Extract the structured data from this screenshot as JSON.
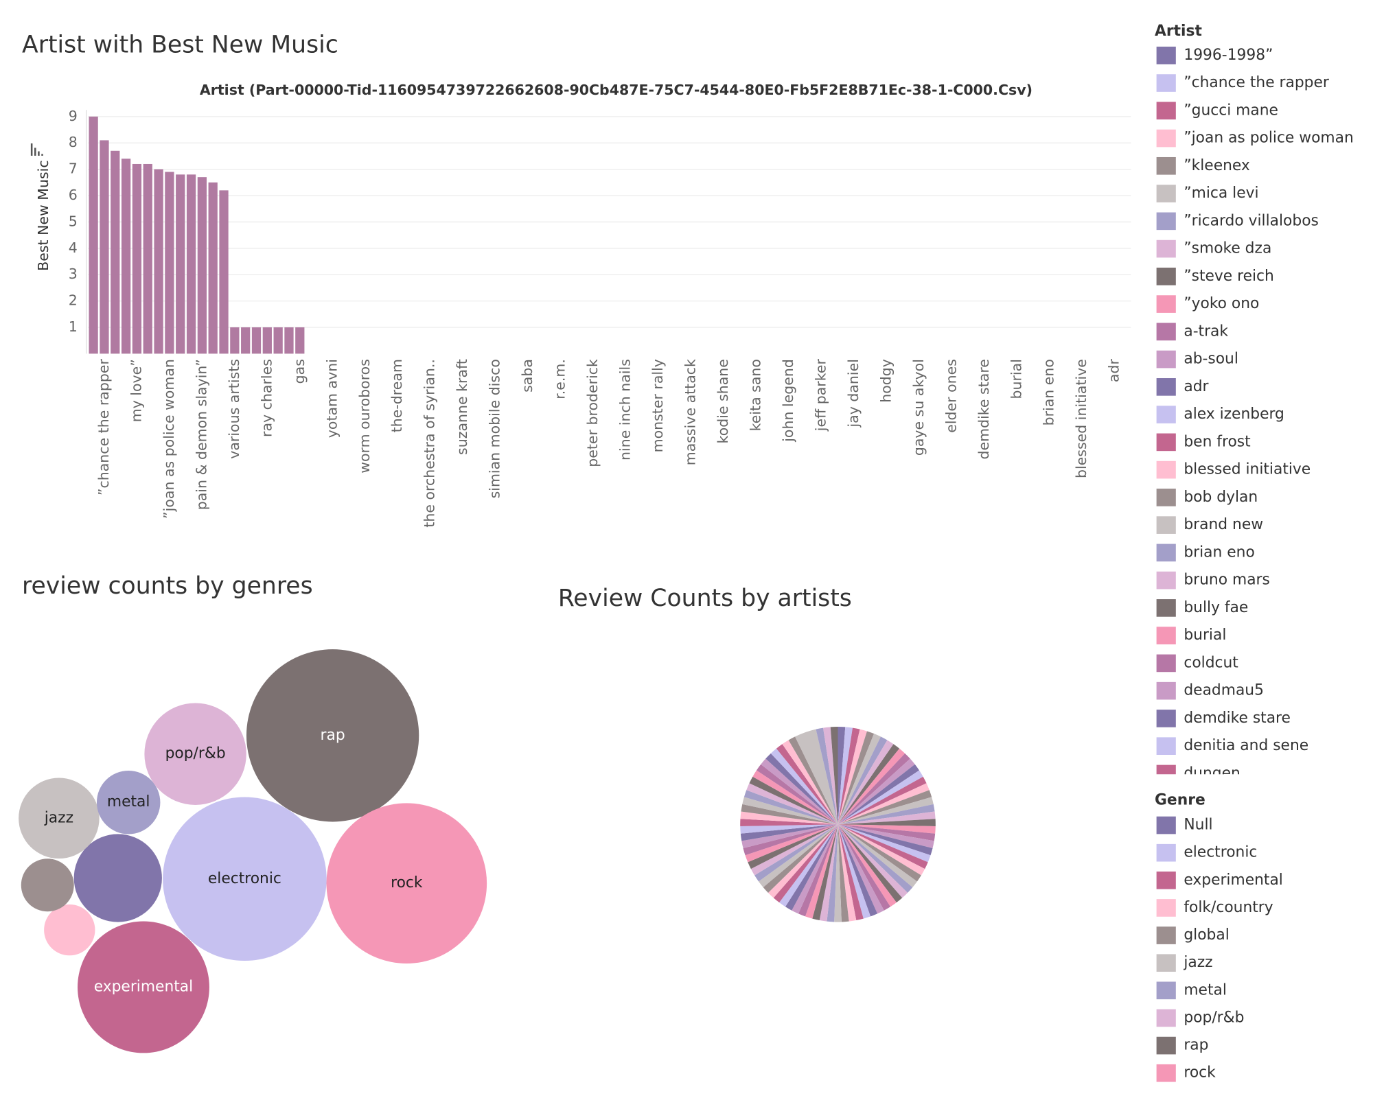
{
  "chart_data": [
    {
      "type": "bar",
      "title": "Artist with Best New Music",
      "x_label": "Artist (Part-00000-Tid-1160954739722662608-90Cb487E-75C7-4544-80E0-Fb5F2E8B71Ec-38-1-C000.Csv)",
      "y_label": "Best New Music",
      "categories": [
        null,
        "”chance the rapper",
        null,
        null,
        "my love”",
        null,
        null,
        "”joan as police woman",
        null,
        null,
        "pain & demon slayin”",
        null,
        null,
        "various artists",
        null,
        null,
        "ray charles",
        null,
        null,
        "gas",
        null,
        null,
        "yotam avni",
        null,
        null,
        "worm ouroboros",
        null,
        null,
        "the-dream",
        null,
        null,
        "the orchestra of syrian..",
        null,
        null,
        "suzanne kraft",
        null,
        null,
        "simian mobile disco",
        null,
        null,
        "saba",
        null,
        null,
        "r.e.m.",
        null,
        null,
        "peter broderick",
        null,
        null,
        "nine inch nails",
        null,
        null,
        "monster rally",
        null,
        null,
        "massive attack",
        null,
        null,
        "kodie shane",
        null,
        null,
        "keita sano",
        null,
        null,
        "john legend",
        null,
        null,
        "jeff parker",
        null,
        null,
        "jay daniel",
        null,
        null,
        "hodgy",
        null,
        null,
        "gaye su akyol",
        null,
        null,
        "elder ones",
        null,
        null,
        "demdike stare",
        null,
        null,
        "burial",
        null,
        null,
        "brian eno",
        null,
        null,
        "blessed initiative",
        null,
        null,
        "adr",
        null
      ],
      "values": [
        9,
        8.1,
        7.7,
        7.4,
        7.2,
        7.2,
        7.0,
        6.9,
        6.8,
        6.8,
        6.7,
        6.5,
        6.2,
        1,
        1,
        1,
        1,
        1,
        1,
        1,
        0,
        0,
        0,
        0,
        0,
        0,
        0,
        0,
        0,
        0,
        0,
        0,
        0,
        0,
        0,
        0,
        0,
        0,
        0,
        0,
        0,
        0,
        0,
        0,
        0,
        0,
        0,
        0,
        0,
        0,
        0,
        0,
        0,
        0,
        0,
        0,
        0,
        0,
        0,
        0,
        0,
        0,
        0,
        0,
        0,
        0,
        0,
        0,
        0,
        0,
        0,
        0,
        0,
        0,
        0,
        0,
        0,
        0,
        0,
        0,
        0,
        0,
        0,
        0,
        0,
        0,
        0,
        0,
        0,
        0,
        0,
        0,
        0,
        0,
        0,
        0
      ],
      "color": "#b07aa1",
      "ylim": [
        0,
        9.25
      ],
      "yticks": [
        1,
        2,
        3,
        4,
        5,
        6,
        7,
        8,
        9
      ],
      "grid": true
    },
    {
      "type": "bubble",
      "title": "review counts by genres",
      "legend_title": "Genre",
      "categories": [
        "Null",
        "electronic",
        "experimental",
        "folk/country",
        "global",
        "jazz",
        "metal",
        "pop/r&b",
        "rap",
        "rock"
      ],
      "values": [
        250,
        865,
        560,
        84,
        90,
        210,
        130,
        335,
        960,
        830
      ],
      "colors": [
        "#8175aa",
        "#c6c1f0",
        "#c3668f",
        "#ffbed1",
        "#9c8f8f",
        "#c7c1c1",
        "#a39fc9",
        "#ddb4d6",
        "#7c7171",
        "#f597b6"
      ]
    },
    {
      "type": "pie",
      "title": "Review Counts by artists",
      "legend_title": "Artist",
      "categories": [
        "1996-1998”",
        "”chance the rapper",
        "”gucci mane",
        "”joan as police woman",
        "”kleenex",
        "”mica levi",
        "”ricardo villalobos",
        "”smoke dza",
        "”steve reich",
        "”yoko ono",
        "a-trak",
        "ab-soul",
        "adr",
        "alex izenberg",
        "ben frost",
        "blessed initiative",
        "bob dylan",
        "brand new",
        "brian eno",
        "bruno mars",
        "bully fae",
        "burial",
        "coldcut",
        "deadmau5",
        "demdike stare",
        "denitia and sene",
        "dungen",
        null,
        null,
        null,
        null,
        null,
        null,
        null,
        null,
        null,
        null,
        null,
        null,
        null,
        null,
        null,
        null,
        null,
        null,
        null,
        null,
        null,
        null,
        null,
        null,
        null,
        null,
        null,
        null,
        null,
        null,
        null,
        null,
        null,
        null,
        null,
        null,
        null,
        null,
        null,
        null,
        null,
        null,
        null,
        null,
        null,
        null,
        null,
        null,
        null,
        null,
        null,
        null,
        null,
        null
      ],
      "values": [
        1,
        1,
        1,
        1,
        1,
        1,
        1,
        1,
        1,
        1,
        1,
        1,
        1,
        1,
        1,
        1,
        1,
        1,
        1,
        1,
        1,
        1,
        1,
        1,
        1,
        1,
        1,
        1,
        1,
        1,
        1,
        1,
        1,
        1,
        1,
        1,
        1,
        1,
        1,
        1,
        1,
        1,
        1,
        1,
        1,
        1,
        1,
        1,
        1,
        1,
        1,
        1,
        1,
        1,
        1,
        1,
        1,
        1,
        1,
        1,
        1,
        1,
        1,
        1,
        1,
        1,
        1,
        1,
        1,
        1,
        1,
        1,
        1,
        1,
        1,
        1,
        1,
        3,
        1,
        1,
        1
      ],
      "palette": [
        "#8175aa",
        "#c6c1f0",
        "#c3668f",
        "#ffbed1",
        "#9c8f8f",
        "#c7c1c1",
        "#a39fc9",
        "#ddb4d6",
        "#7c7171",
        "#f597b6",
        "#b677a6",
        "#c99bc6"
      ]
    }
  ]
}
